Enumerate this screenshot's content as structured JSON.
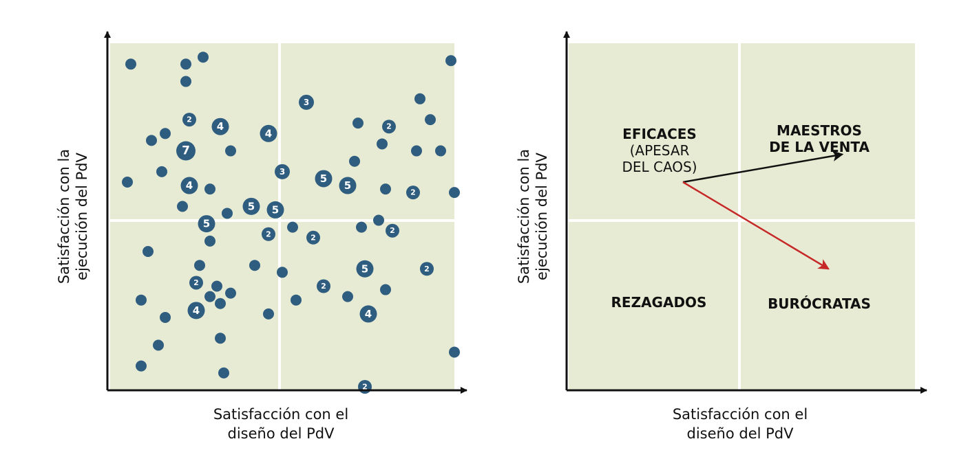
{
  "colors": {
    "panel": "#e8ebd3",
    "divider": "#ffffff",
    "dot": "#2f5d80",
    "dot_label": "#ffffff",
    "axis": "#111111",
    "arrow_black": "#111111",
    "arrow_red": "#c62828"
  },
  "chart_data": [
    {
      "type": "scatter",
      "title": "",
      "xlabel": "Satisfacción con el diseño del PdV",
      "ylabel": "Satisfacción con la ejecución del PdV",
      "xlabel_lines": [
        "Satisfacción con el",
        "diseño del PdV"
      ],
      "ylabel_lines": [
        "Satisfacción con la",
        "ejecución del PdV"
      ],
      "xlim": [
        0,
        10
      ],
      "ylim": [
        0,
        10
      ],
      "divider": {
        "x": 5,
        "y": 5
      },
      "grid": false,
      "legend": "none",
      "points": [
        {
          "x": 0.6,
          "y": 9.4,
          "count": 1
        },
        {
          "x": 2.2,
          "y": 9.4,
          "count": 1
        },
        {
          "x": 2.7,
          "y": 9.6,
          "count": 1
        },
        {
          "x": 2.2,
          "y": 8.9,
          "count": 1
        },
        {
          "x": 9.9,
          "y": 9.5,
          "count": 1
        },
        {
          "x": 5.7,
          "y": 8.3,
          "count": 3
        },
        {
          "x": 9.0,
          "y": 8.4,
          "count": 1
        },
        {
          "x": 2.3,
          "y": 7.8,
          "count": 2
        },
        {
          "x": 3.2,
          "y": 7.6,
          "count": 4
        },
        {
          "x": 4.6,
          "y": 7.4,
          "count": 4
        },
        {
          "x": 7.2,
          "y": 7.7,
          "count": 1
        },
        {
          "x": 8.1,
          "y": 7.6,
          "count": 2
        },
        {
          "x": 9.3,
          "y": 7.8,
          "count": 1
        },
        {
          "x": 1.2,
          "y": 7.2,
          "count": 1
        },
        {
          "x": 1.6,
          "y": 7.4,
          "count": 1
        },
        {
          "x": 2.2,
          "y": 6.9,
          "count": 7
        },
        {
          "x": 3.5,
          "y": 6.9,
          "count": 1
        },
        {
          "x": 7.9,
          "y": 7.1,
          "count": 1
        },
        {
          "x": 8.9,
          "y": 6.9,
          "count": 1
        },
        {
          "x": 9.6,
          "y": 6.9,
          "count": 1
        },
        {
          "x": 7.1,
          "y": 6.6,
          "count": 1
        },
        {
          "x": 1.5,
          "y": 6.3,
          "count": 1
        },
        {
          "x": 0.5,
          "y": 6.0,
          "count": 1
        },
        {
          "x": 5.0,
          "y": 6.3,
          "count": 3
        },
        {
          "x": 6.2,
          "y": 6.1,
          "count": 5
        },
        {
          "x": 2.3,
          "y": 5.9,
          "count": 4
        },
        {
          "x": 2.9,
          "y": 5.8,
          "count": 1
        },
        {
          "x": 6.9,
          "y": 5.9,
          "count": 5
        },
        {
          "x": 8.0,
          "y": 5.8,
          "count": 1
        },
        {
          "x": 8.8,
          "y": 5.7,
          "count": 2
        },
        {
          "x": 10.0,
          "y": 5.7,
          "count": 1
        },
        {
          "x": 2.1,
          "y": 5.3,
          "count": 1
        },
        {
          "x": 3.4,
          "y": 5.1,
          "count": 1
        },
        {
          "x": 4.1,
          "y": 5.3,
          "count": 5
        },
        {
          "x": 4.8,
          "y": 5.2,
          "count": 5
        },
        {
          "x": 2.8,
          "y": 4.8,
          "count": 5
        },
        {
          "x": 7.8,
          "y": 4.9,
          "count": 1
        },
        {
          "x": 5.3,
          "y": 4.7,
          "count": 1
        },
        {
          "x": 7.3,
          "y": 4.7,
          "count": 1
        },
        {
          "x": 4.6,
          "y": 4.5,
          "count": 2
        },
        {
          "x": 5.9,
          "y": 4.4,
          "count": 2
        },
        {
          "x": 8.2,
          "y": 4.6,
          "count": 2
        },
        {
          "x": 2.9,
          "y": 4.3,
          "count": 1
        },
        {
          "x": 1.1,
          "y": 4.0,
          "count": 1
        },
        {
          "x": 2.6,
          "y": 3.6,
          "count": 1
        },
        {
          "x": 4.2,
          "y": 3.6,
          "count": 1
        },
        {
          "x": 5.0,
          "y": 3.4,
          "count": 1
        },
        {
          "x": 7.4,
          "y": 3.5,
          "count": 5
        },
        {
          "x": 9.2,
          "y": 3.5,
          "count": 2
        },
        {
          "x": 2.5,
          "y": 3.1,
          "count": 2
        },
        {
          "x": 3.1,
          "y": 3.0,
          "count": 1
        },
        {
          "x": 6.2,
          "y": 3.0,
          "count": 2
        },
        {
          "x": 8.0,
          "y": 2.9,
          "count": 1
        },
        {
          "x": 2.9,
          "y": 2.7,
          "count": 1
        },
        {
          "x": 3.5,
          "y": 2.8,
          "count": 1
        },
        {
          "x": 3.2,
          "y": 2.5,
          "count": 1
        },
        {
          "x": 0.9,
          "y": 2.6,
          "count": 1
        },
        {
          "x": 5.4,
          "y": 2.6,
          "count": 1
        },
        {
          "x": 6.9,
          "y": 2.7,
          "count": 1
        },
        {
          "x": 2.5,
          "y": 2.3,
          "count": 4
        },
        {
          "x": 4.6,
          "y": 2.2,
          "count": 1
        },
        {
          "x": 7.5,
          "y": 2.2,
          "count": 4
        },
        {
          "x": 1.6,
          "y": 2.1,
          "count": 1
        },
        {
          "x": 3.2,
          "y": 1.5,
          "count": 1
        },
        {
          "x": 1.4,
          "y": 1.3,
          "count": 1
        },
        {
          "x": 0.9,
          "y": 0.7,
          "count": 1
        },
        {
          "x": 3.3,
          "y": 0.5,
          "count": 1
        },
        {
          "x": 10.0,
          "y": 1.1,
          "count": 1
        },
        {
          "x": 7.4,
          "y": 0.1,
          "count": 2
        }
      ]
    },
    {
      "type": "quadrant",
      "title": "",
      "xlabel": "Satisfacción con el diseño del PdV",
      "ylabel": "Satisfacción con la ejecución del PdV",
      "xlabel_lines": [
        "Satisfacción con el",
        "diseño del PdV"
      ],
      "ylabel_lines": [
        "Satisfacción con la",
        "ejecución del PdV"
      ],
      "xlim": [
        0,
        10
      ],
      "ylim": [
        0,
        10
      ],
      "divider": {
        "x": 5,
        "y": 5
      },
      "quadrants": {
        "top_left": {
          "title": "EFICACES",
          "subtitle_lines": [
            "(APESAR",
            "DEL CAOS)"
          ]
        },
        "top_right": {
          "title_lines": [
            "MAESTROS",
            "DE LA VENTA"
          ]
        },
        "bottom_left": {
          "title": "REZAGADOS"
        },
        "bottom_right": {
          "title": "BURÓCRATAS"
        }
      },
      "arrows": [
        {
          "color": "arrow_black",
          "from": [
            3.3,
            6.0
          ],
          "to": [
            7.9,
            6.8
          ]
        },
        {
          "color": "arrow_red",
          "from": [
            3.3,
            6.0
          ],
          "to": [
            7.5,
            3.5
          ]
        }
      ]
    }
  ]
}
